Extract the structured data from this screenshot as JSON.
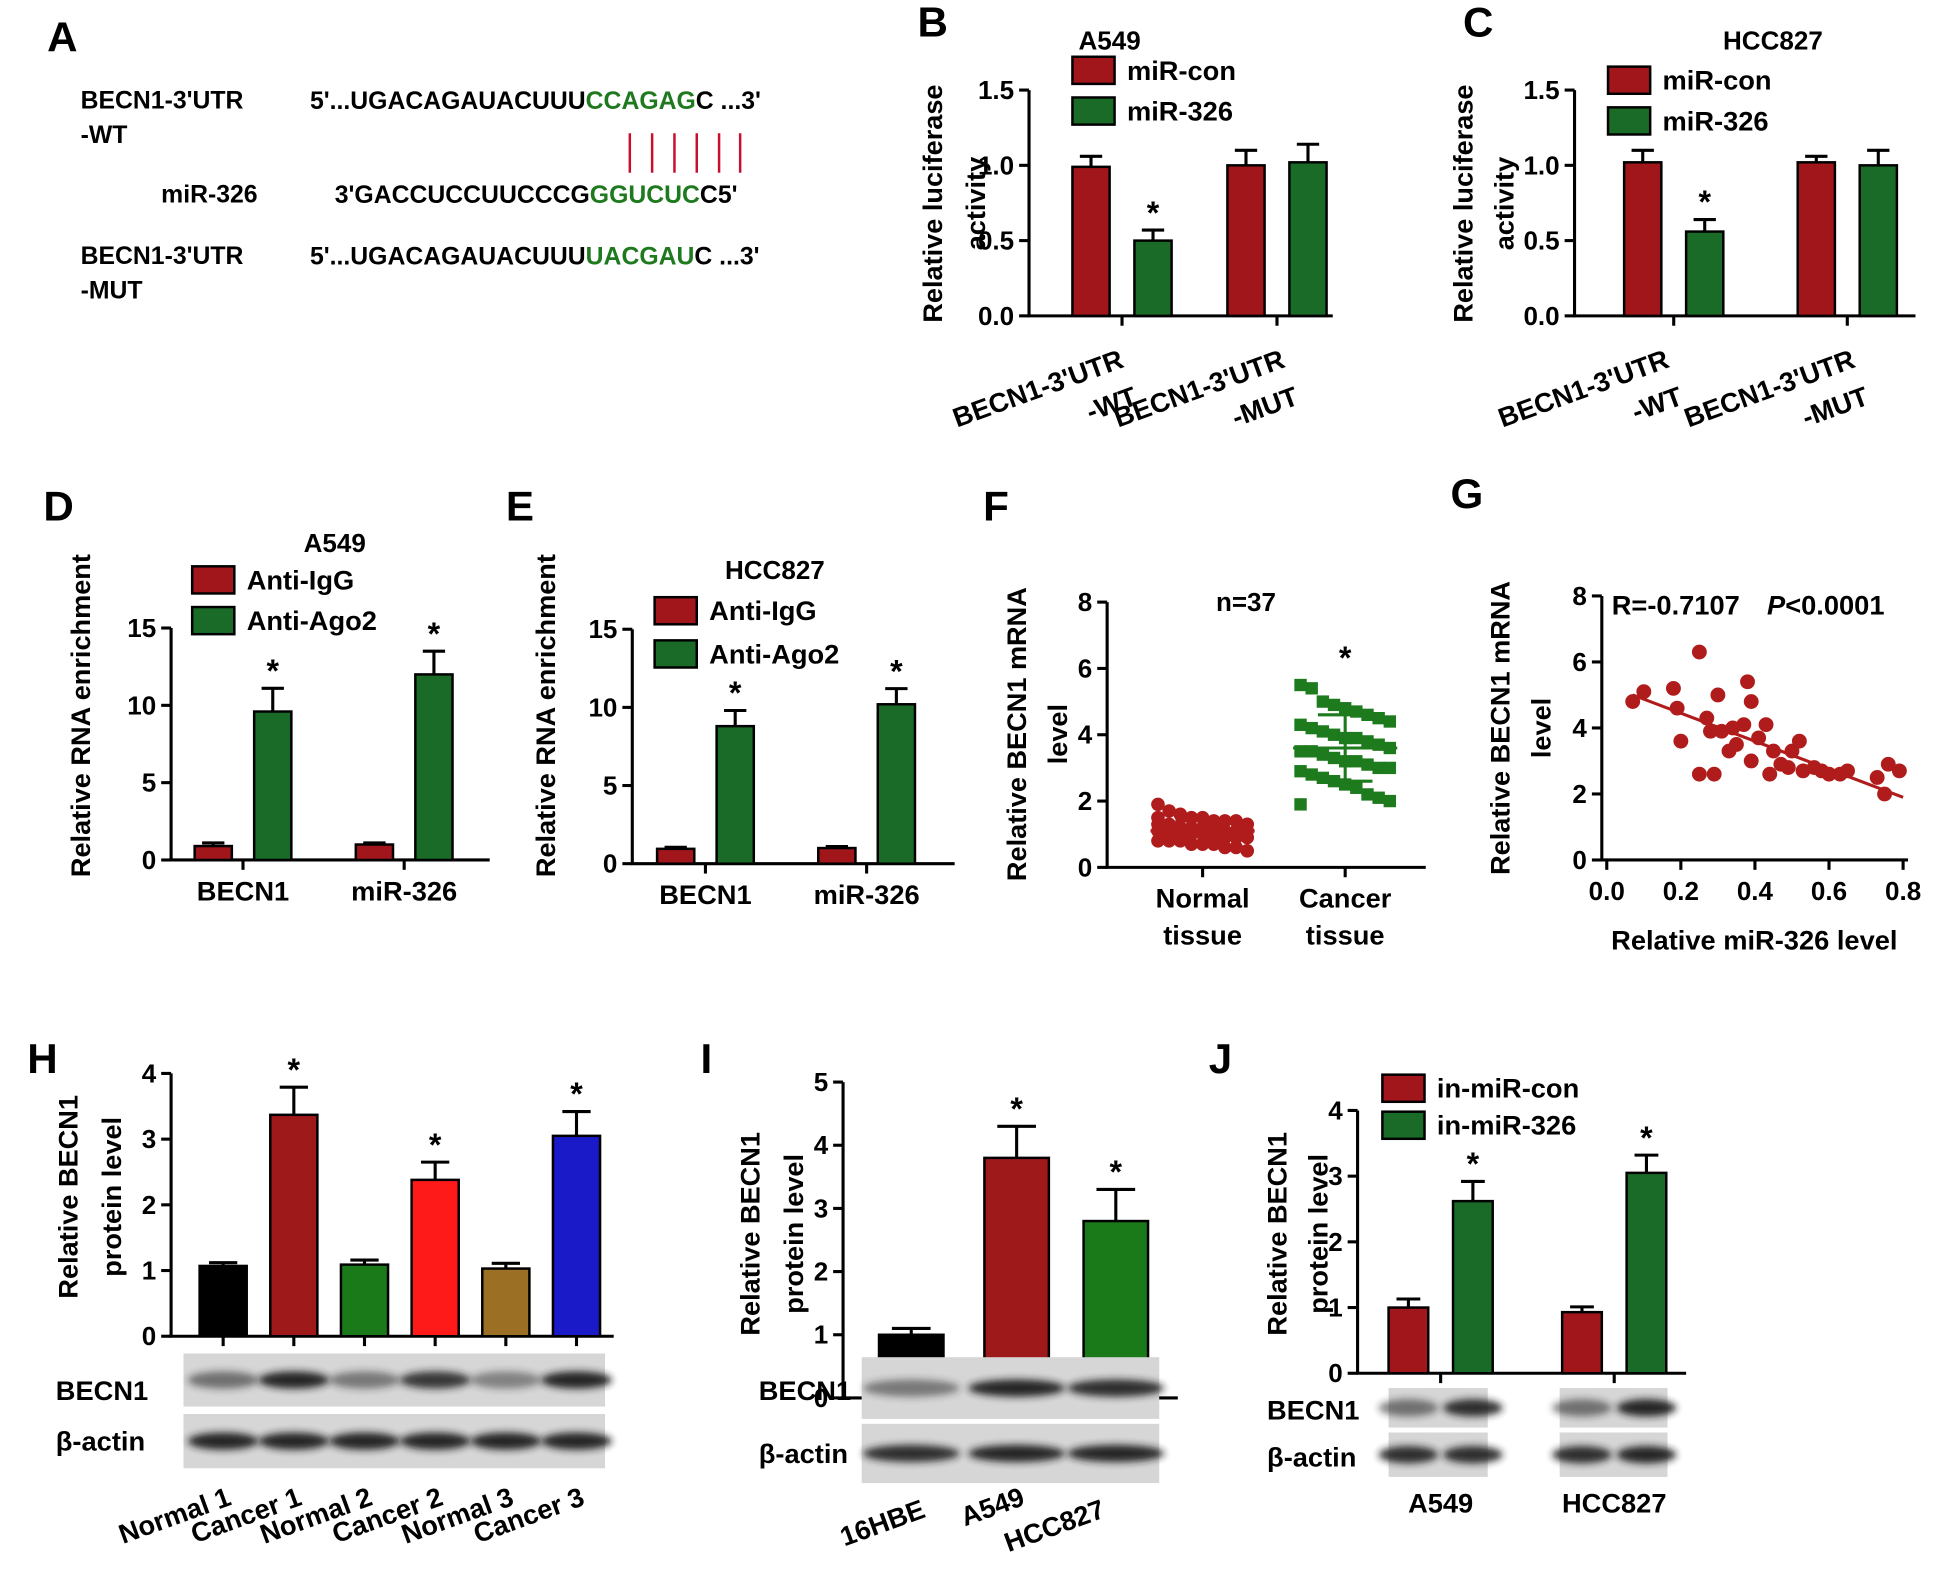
{
  "chart_data": [
    {
      "type": "sequence",
      "label": "A",
      "highlight_color": "#1f7a1f",
      "rows": [
        {
          "name": [
            "BECN1-3'UTR",
            "-WT"
          ],
          "sequence": [
            "5'...UGACAGAUACUUU",
            "CCAGAG",
            "C ...3'"
          ]
        },
        {
          "name": [
            "miR-326"
          ],
          "sequence": [
            "3'GACCUCCUUCCCG",
            "GGUCUC",
            "C5'"
          ]
        },
        {
          "name": [
            "BECN1-3'UTR",
            "-MUT"
          ],
          "sequence": [
            "5'...UGACAGAUACUUU",
            "UACGAU",
            "C ...3'"
          ]
        }
      ]
    },
    {
      "type": "bar",
      "label": "B",
      "title": "A549",
      "ylabel": [
        "Relative luciferase",
        "activity"
      ],
      "categories": [
        [
          "BECN1-3'UTR",
          "-WT"
        ],
        [
          "BECN1-3'UTR",
          "-MUT"
        ]
      ],
      "series": [
        {
          "name": "miR-con",
          "color": "#a0161b",
          "values": [
            0.99,
            1.0
          ],
          "errors": [
            0.07,
            0.1
          ]
        },
        {
          "name": "miR-326",
          "color": "#1b6b28",
          "values": [
            0.5,
            1.02
          ],
          "errors": [
            0.07,
            0.12
          ]
        }
      ],
      "ylim": [
        0,
        1.5
      ],
      "yticks": [
        {
          "value": 0,
          "label": "0.0"
        },
        0.5,
        {
          "value": 1,
          "label": "1.0"
        },
        1.5
      ],
      "annotations": [
        {
          "text": "*",
          "series": 1,
          "index": 0
        }
      ]
    },
    {
      "type": "bar",
      "label": "C",
      "title": "HCC827",
      "ylabel": [
        "Relative luciferase",
        "activity"
      ],
      "categories": [
        [
          "BECN1-3'UTR",
          "-WT"
        ],
        [
          "BECN1-3'UTR",
          "-MUT"
        ]
      ],
      "series": [
        {
          "name": "miR-con",
          "color": "#a0161b",
          "values": [
            1.02,
            1.02
          ],
          "errors": [
            0.08,
            0.04
          ]
        },
        {
          "name": "miR-326",
          "color": "#1b6b28",
          "values": [
            0.56,
            1.0
          ],
          "errors": [
            0.08,
            0.1
          ]
        }
      ],
      "ylim": [
        0,
        1.5
      ],
      "yticks": [
        {
          "value": 0,
          "label": "0.0"
        },
        0.5,
        {
          "value": 1,
          "label": "1.0"
        },
        1.5
      ],
      "annotations": [
        {
          "text": "*",
          "series": 1,
          "index": 0
        }
      ]
    },
    {
      "type": "bar",
      "label": "D",
      "title": "A549",
      "ylabel": [
        "Relative RNA enrichment"
      ],
      "categories": [
        [
          "BECN1"
        ],
        [
          "miR-326"
        ]
      ],
      "series": [
        {
          "name": "Anti-IgG",
          "color": "#a0161b",
          "values": [
            0.9,
            1.0
          ],
          "errors": [
            0.2,
            0.1
          ]
        },
        {
          "name": "Anti-Ago2",
          "color": "#1b6b28",
          "values": [
            9.6,
            12.0
          ],
          "errors": [
            1.5,
            1.5
          ]
        }
      ],
      "ylim": [
        0,
        15
      ],
      "yticks": [
        0,
        5,
        10,
        15
      ],
      "annotations": [
        {
          "text": "*",
          "series": 1,
          "index": 0
        },
        {
          "text": "*",
          "series": 1,
          "index": 1
        }
      ]
    },
    {
      "type": "bar",
      "label": "E",
      "title": "HCC827",
      "ylabel": [
        "Relative RNA enrichment"
      ],
      "categories": [
        [
          "BECN1"
        ],
        [
          "miR-326"
        ]
      ],
      "series": [
        {
          "name": "Anti-IgG",
          "color": "#a0161b",
          "values": [
            0.95,
            1.0
          ],
          "errors": [
            0.1,
            0.1
          ]
        },
        {
          "name": "Anti-Ago2",
          "color": "#1b6b28",
          "values": [
            8.8,
            10.2
          ],
          "errors": [
            1.0,
            1.0
          ]
        }
      ],
      "ylim": [
        0,
        15
      ],
      "yticks": [
        0,
        5,
        10,
        15
      ],
      "annotations": [
        {
          "text": "*",
          "series": 1,
          "index": 0
        },
        {
          "text": "*",
          "series": 1,
          "index": 1
        }
      ]
    },
    {
      "type": "dot",
      "label": "F",
      "title": "n=37",
      "ylabel": [
        "Relative BECN1 mRNA",
        "level"
      ],
      "categories": [
        [
          "Normal",
          "tissue"
        ],
        [
          "Cancer",
          "tissue"
        ]
      ],
      "groups": [
        {
          "color": "#b01c1c",
          "marker": "circle",
          "mean": 1.1,
          "sd": 0.3,
          "values": [
            1.9,
            1.7,
            1.6,
            1.5,
            1.5,
            1.4,
            1.4,
            1.4,
            1.3,
            1.3,
            1.3,
            1.2,
            1.2,
            1.2,
            1.2,
            1.1,
            1.1,
            1.1,
            1.1,
            1.0,
            1.0,
            1.0,
            1.0,
            0.9,
            0.9,
            0.9,
            0.9,
            0.8,
            0.8,
            0.8,
            0.7,
            0.7,
            0.7,
            0.6,
            0.6,
            0.5,
            1.5
          ]
        },
        {
          "color": "#1d7a1d",
          "marker": "square",
          "mean": 3.6,
          "sd": 1.0,
          "values": [
            5.5,
            5.4,
            5.0,
            4.9,
            4.8,
            4.7,
            4.6,
            4.5,
            4.4,
            4.3,
            4.2,
            4.1,
            4.0,
            3.9,
            3.9,
            3.8,
            3.7,
            3.6,
            3.5,
            3.5,
            3.4,
            3.3,
            3.2,
            3.2,
            3.1,
            3.0,
            3.0,
            2.9,
            2.8,
            2.7,
            2.6,
            2.5,
            2.4,
            2.2,
            2.1,
            2.0,
            1.9
          ]
        }
      ],
      "ylim": [
        0,
        8
      ],
      "yticks": [
        0,
        2,
        4,
        6,
        8
      ],
      "annotations": [
        {
          "text": "*",
          "index": 1
        }
      ]
    },
    {
      "type": "scatter",
      "label": "G",
      "ylabel": [
        "Relative BECN1 mRNA",
        "level"
      ],
      "xlabel": "Relative miR-326 level",
      "stat": [
        "R=-0.7107",
        "P",
        "<0.0001"
      ],
      "color": "#b01c1c",
      "x": [
        0.07,
        0.1,
        0.18,
        0.19,
        0.2,
        0.25,
        0.27,
        0.28,
        0.3,
        0.31,
        0.33,
        0.34,
        0.35,
        0.37,
        0.38,
        0.39,
        0.39,
        0.41,
        0.43,
        0.44,
        0.45,
        0.47,
        0.49,
        0.5,
        0.52,
        0.53,
        0.56,
        0.58,
        0.6,
        0.63,
        0.65,
        0.29,
        0.25,
        0.73,
        0.76,
        0.79,
        0.75
      ],
      "y": [
        4.8,
        5.1,
        5.2,
        4.6,
        3.6,
        6.3,
        4.3,
        3.9,
        5.0,
        3.9,
        3.3,
        4.0,
        3.5,
        4.1,
        5.4,
        4.8,
        3.0,
        3.7,
        4.1,
        2.6,
        3.3,
        2.9,
        2.8,
        3.3,
        3.6,
        2.7,
        2.8,
        2.7,
        2.6,
        2.6,
        2.7,
        2.6,
        2.6,
        2.5,
        2.9,
        2.7,
        2.0
      ],
      "fit": {
        "x": [
          0.07,
          0.8
        ],
        "y": [
          5.0,
          1.9
        ]
      },
      "xlim": [
        0,
        0.8
      ],
      "xticks": [
        {
          "value": 0,
          "label": "0.0"
        },
        0.2,
        0.4,
        0.6,
        0.8
      ],
      "ylim": [
        0,
        8
      ],
      "yticks": [
        0,
        2,
        4,
        6,
        8
      ]
    },
    {
      "type": "bar",
      "label": "H",
      "ylabel": [
        "Relative BECN1",
        "protein level"
      ],
      "categories": [
        [
          "Normal 1"
        ],
        [
          "Cancer 1"
        ],
        [
          "Normal 2"
        ],
        [
          "Cancer 2"
        ],
        [
          "Normal 3"
        ],
        [
          "Cancer 3"
        ]
      ],
      "values": [
        1.07,
        3.37,
        1.09,
        2.38,
        1.03,
        3.05
      ],
      "errors": [
        0.05,
        0.42,
        0.07,
        0.27,
        0.08,
        0.37
      ],
      "colors": [
        "#000000",
        "#9e1a1a",
        "#1a7a1a",
        "#ff1a1a",
        "#9c7024",
        "#1a1ac8"
      ],
      "ylim": [
        0,
        4
      ],
      "yticks": [
        0,
        1,
        2,
        3,
        4
      ],
      "annotations": [
        {
          "text": "*",
          "index": 1
        },
        {
          "text": "*",
          "index": 3
        },
        {
          "text": "*",
          "index": 5
        }
      ],
      "blot_labels": [
        "BECN1",
        "β-actin"
      ]
    },
    {
      "type": "bar",
      "label": "I",
      "ylabel": [
        "Relative BECN1",
        "protein level"
      ],
      "categories": [
        [
          "16HBE"
        ],
        [
          "A549"
        ],
        [
          "HCC827"
        ]
      ],
      "values": [
        1.0,
        3.8,
        2.8
      ],
      "errors": [
        0.1,
        0.5,
        0.5
      ],
      "colors": [
        "#000000",
        "#9e1a1a",
        "#1a7a1a"
      ],
      "ylim": [
        0,
        5
      ],
      "yticks": [
        0,
        1,
        2,
        3,
        4,
        5
      ],
      "annotations": [
        {
          "text": "*",
          "index": 1
        },
        {
          "text": "*",
          "index": 2
        }
      ],
      "blot_labels": [
        "BECN1",
        "β-actin"
      ]
    },
    {
      "type": "bar",
      "label": "J",
      "ylabel": [
        "Relative BECN1",
        "protein level"
      ],
      "categories": [
        [
          "A549"
        ],
        [
          "HCC827"
        ]
      ],
      "series": [
        {
          "name": "in-miR-con",
          "color": "#a0161b",
          "values": [
            1.0,
            0.93
          ],
          "errors": [
            0.13,
            0.08
          ]
        },
        {
          "name": "in-miR-326",
          "color": "#1b6b28",
          "values": [
            2.62,
            3.05
          ],
          "errors": [
            0.3,
            0.27
          ]
        }
      ],
      "ylim": [
        0,
        4
      ],
      "yticks": [
        0,
        1,
        2,
        3,
        4
      ],
      "annotations": [
        {
          "text": "*",
          "series": 1,
          "index": 0
        },
        {
          "text": "*",
          "series": 1,
          "index": 1
        }
      ],
      "blot_labels": [
        "BECN1",
        "β-actin"
      ]
    }
  ]
}
